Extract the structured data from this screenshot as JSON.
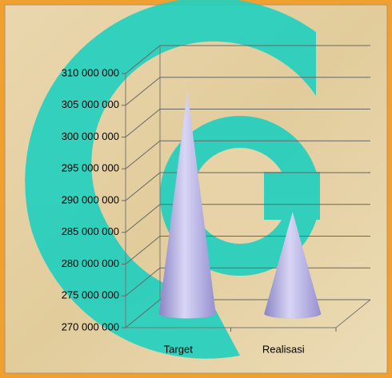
{
  "chart_data": {
    "type": "cone",
    "categories": [
      "Target",
      "Realisasi"
    ],
    "values": [
      305000000,
      286000000
    ],
    "color": "#b8b4e8",
    "ylim": [
      270000000,
      310000000
    ],
    "yticks": [
      {
        "value": 270000000,
        "label": "270 000 000"
      },
      {
        "value": 275000000,
        "label": "275 000 000"
      },
      {
        "value": 280000000,
        "label": "280 000 000"
      },
      {
        "value": 285000000,
        "label": "285 000 000"
      },
      {
        "value": 290000000,
        "label": "290 000 000"
      },
      {
        "value": 295000000,
        "label": "295 000 000"
      },
      {
        "value": 300000000,
        "label": "300 000 000"
      },
      {
        "value": 305000000,
        "label": "305 000 000"
      },
      {
        "value": 310000000,
        "label": "310 000 000"
      }
    ],
    "grid": true
  }
}
